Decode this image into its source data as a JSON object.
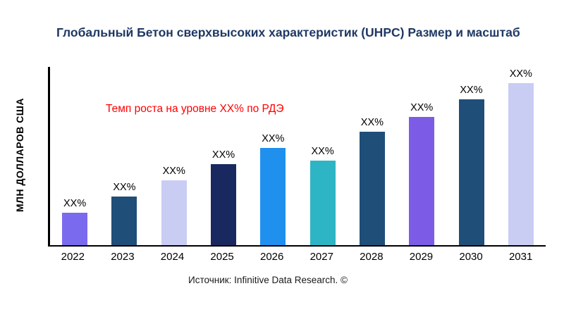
{
  "title": "Глобальный Бетон сверхвысоких характеристик (UHPC) Размер и масштаб",
  "y_axis_label": "МЛН ДОЛЛАРОВ США",
  "annotation": "Темп роста на уровне XX% по РДЭ",
  "source": "Источник: Infinitive Data Research. ©",
  "colors": {
    "title": "#1f3864",
    "annotation": "#ff0000",
    "axis": "#000000"
  },
  "chart_data": {
    "type": "bar",
    "title": "Глобальный Бетон сверхвысоких характеристик (UHPC) Размер и масштаб",
    "xlabel": "",
    "ylabel": "МЛН ДОЛЛАРОВ США",
    "categories": [
      "2022",
      "2023",
      "2024",
      "2025",
      "2026",
      "2027",
      "2028",
      "2029",
      "2030",
      "2031"
    ],
    "values": [
      20,
      30,
      40,
      50,
      60,
      52,
      70,
      79,
      90,
      100
    ],
    "bar_labels": [
      "XX%",
      "XX%",
      "XX%",
      "XX%",
      "XX%",
      "XX%",
      "XX%",
      "XX%",
      "XX%",
      "XX%"
    ],
    "colors": [
      "#7a6bee",
      "#1f4e79",
      "#c9cdf4",
      "#1a2860",
      "#2090ee",
      "#2eb5c5",
      "#1f4e79",
      "#7c5ce6",
      "#1f4e79",
      "#c9cdf4"
    ],
    "ylim": [
      0,
      110
    ],
    "grid": false,
    "legend": "none",
    "annotation": "Темп роста на уровне XX% по РДЭ"
  }
}
